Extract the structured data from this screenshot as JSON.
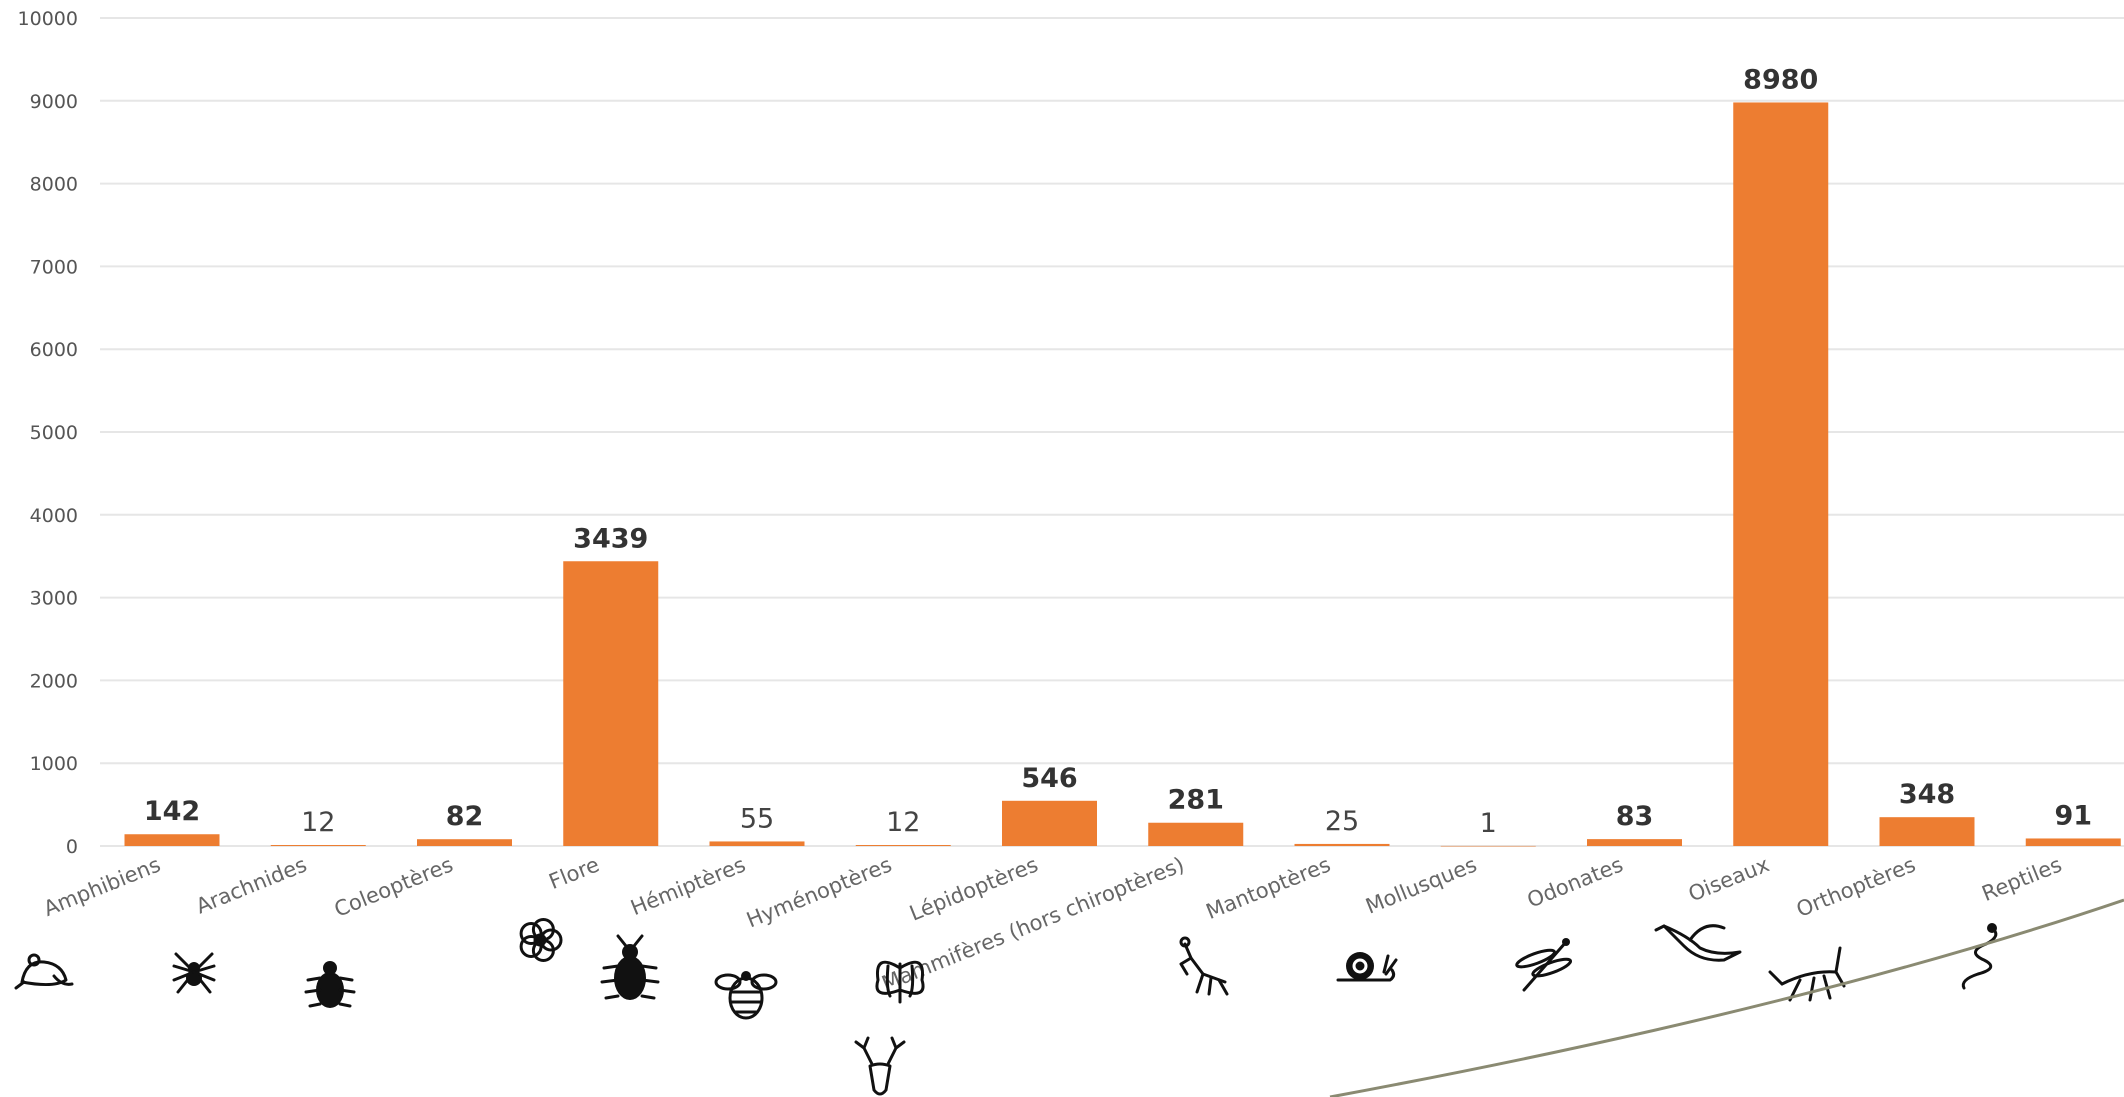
{
  "chart_data": {
    "type": "bar",
    "categories": [
      "Amphibiens",
      "Arachnides",
      "Coleoptères",
      "Flore",
      "Hémiptères",
      "Hyménoptères",
      "Lépidoptères",
      "Mammifères (hors chiroptères)",
      "Mantoptères",
      "Mollusques",
      "Odonates",
      "Oiseaux",
      "Orthoptères",
      "Reptiles"
    ],
    "values": [
      142,
      12,
      82,
      3439,
      55,
      12,
      546,
      281,
      25,
      1,
      83,
      8980,
      348,
      91
    ],
    "data_labels": [
      "142",
      "12",
      "82",
      "3439",
      "55",
      "12",
      "546",
      "281",
      "25",
      "1",
      "83",
      "8980",
      "348",
      "91"
    ],
    "yticks": [
      "0",
      "1000",
      "2000",
      "3000",
      "4000",
      "5000",
      "6000",
      "7000",
      "8000",
      "9000",
      "10000"
    ],
    "title": "",
    "xlabel": "",
    "ylabel": "",
    "ylim": [
      0,
      10000
    ],
    "grid": true,
    "legend": "none",
    "bar_color": "#ED7D31",
    "icons": [
      "frog-icon",
      "spider-icon",
      "beetle-icon",
      "flower-icon",
      "bug-icon",
      "bee-icon",
      "butterfly-icon",
      "deer-icon",
      "mantis-icon",
      "snail-icon",
      "dragonfly-icon",
      "bird-icon",
      "grasshopper-icon",
      "snake-icon"
    ]
  }
}
